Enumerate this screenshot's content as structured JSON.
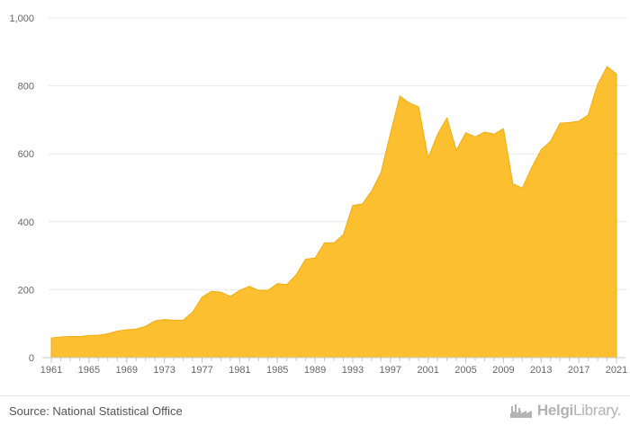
{
  "chart_data": {
    "type": "area",
    "title": "",
    "xlabel": "",
    "ylabel": "",
    "x": [
      1961,
      1962,
      1963,
      1964,
      1965,
      1966,
      1967,
      1968,
      1969,
      1970,
      1971,
      1972,
      1973,
      1974,
      1975,
      1976,
      1977,
      1978,
      1979,
      1980,
      1981,
      1982,
      1983,
      1984,
      1985,
      1986,
      1987,
      1988,
      1989,
      1990,
      1991,
      1992,
      1993,
      1994,
      1995,
      1996,
      1997,
      1998,
      1999,
      2000,
      2001,
      2002,
      2003,
      2004,
      2005,
      2006,
      2007,
      2008,
      2009,
      2010,
      2011,
      2012,
      2013,
      2014,
      2015,
      2016,
      2017,
      2018,
      2019,
      2020,
      2021
    ],
    "values": [
      58,
      61,
      62,
      62,
      65,
      66,
      70,
      78,
      82,
      84,
      92,
      108,
      112,
      110,
      110,
      134,
      178,
      195,
      193,
      180,
      198,
      210,
      198,
      198,
      218,
      215,
      244,
      290,
      293,
      338,
      338,
      362,
      448,
      452,
      490,
      545,
      660,
      770,
      750,
      738,
      588,
      657,
      706,
      610,
      662,
      650,
      664,
      658,
      674,
      512,
      499,
      560,
      612,
      637,
      690,
      692,
      696,
      715,
      805,
      857,
      835
    ],
    "xlim": [
      1961,
      2021
    ],
    "ylim": [
      0,
      1000
    ],
    "x_ticks": [
      "1961",
      "1965",
      "1969",
      "1973",
      "1977",
      "1981",
      "1985",
      "1989",
      "1993",
      "1997",
      "2001",
      "2005",
      "2009",
      "2013",
      "2017",
      "2021"
    ],
    "y_ticks": [
      "0",
      "200",
      "400",
      "600",
      "800",
      "1,000"
    ],
    "grid": true,
    "legend": "none"
  },
  "colors": {
    "area_fill": "#fbbf2f",
    "area_line": "#f2ad10",
    "grid": "#e9e9e9",
    "axis": "#c8c8c8",
    "tick_text": "#666666"
  },
  "footer": {
    "source": "Source: National Statistical Office",
    "brand_name_bold": "Helgi",
    "brand_name_rest": "Library."
  }
}
